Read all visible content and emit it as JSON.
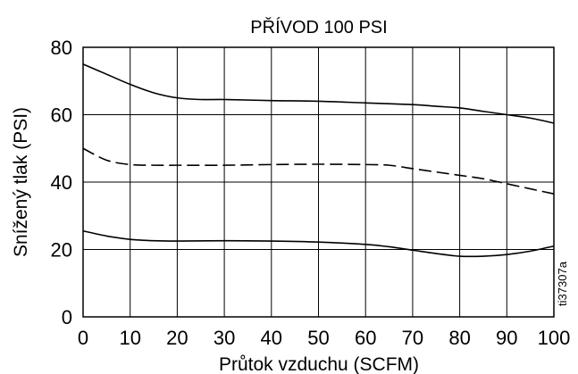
{
  "chart_data": {
    "type": "line",
    "title": "PŘÍVOD 100 PSI",
    "xlabel": "Průtok vzduchu (SCFM)",
    "ylabel": "Snížený tlak (PSI)",
    "xlim": [
      0,
      100
    ],
    "ylim": [
      0,
      80
    ],
    "xticks": [
      0,
      10,
      20,
      30,
      40,
      50,
      60,
      70,
      80,
      90,
      100
    ],
    "yticks": [
      0,
      20,
      40,
      60,
      80
    ],
    "grid": true,
    "series": [
      {
        "style": "solid",
        "x": [
          0,
          5,
          10,
          15,
          20,
          25,
          30,
          40,
          50,
          60,
          70,
          75,
          80,
          85,
          90,
          95,
          100
        ],
        "y": [
          75,
          72,
          69,
          66.5,
          65,
          64.5,
          64.5,
          64.2,
          64,
          63.5,
          63,
          62.5,
          62,
          61,
          60,
          59,
          57.5
        ]
      },
      {
        "style": "dashed",
        "x": [
          0,
          5,
          10,
          15,
          20,
          30,
          40,
          50,
          60,
          65,
          70,
          75,
          80,
          85,
          90,
          95,
          100
        ],
        "y": [
          50,
          46.5,
          45.2,
          45,
          45,
          45,
          45.2,
          45.3,
          45.2,
          45,
          44,
          43,
          42,
          41,
          39.5,
          38,
          36.5
        ]
      },
      {
        "style": "solid",
        "x": [
          0,
          5,
          10,
          15,
          20,
          30,
          40,
          50,
          60,
          65,
          70,
          75,
          80,
          85,
          90,
          95,
          100
        ],
        "y": [
          25.5,
          24,
          23,
          22.6,
          22.5,
          22.6,
          22.5,
          22.2,
          21.5,
          20.8,
          19.8,
          18.8,
          18,
          18,
          18.5,
          19.5,
          21
        ]
      }
    ]
  },
  "annotation": {
    "ref_code": "ti37307a"
  }
}
